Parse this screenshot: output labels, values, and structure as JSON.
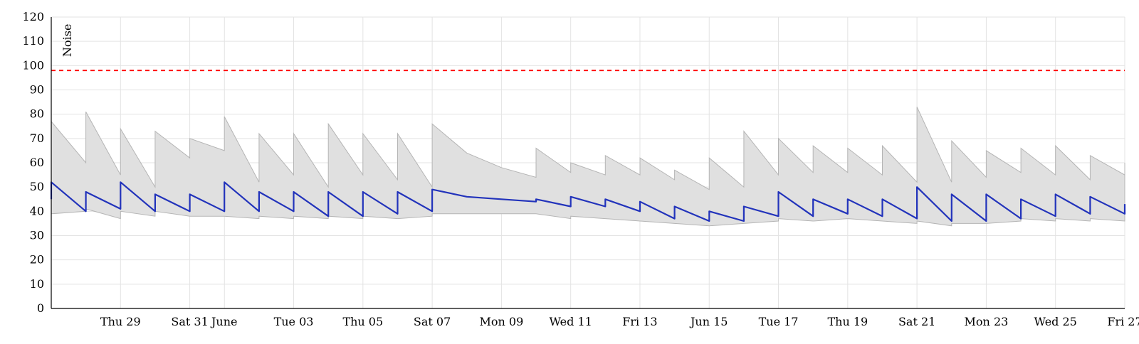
{
  "chart_data": {
    "type": "line",
    "title": "",
    "xlabel": "",
    "ylabel": "Noise",
    "ylim": [
      0,
      120
    ],
    "y_ticks": [
      0,
      10,
      20,
      30,
      40,
      50,
      60,
      70,
      80,
      90,
      100,
      110,
      120
    ],
    "x_ticks": [
      {
        "label": "Thu 29",
        "x": "05-29"
      },
      {
        "label": "Sat 31",
        "x": "05-31"
      },
      {
        "label": "June",
        "x": "06-01"
      },
      {
        "label": "Tue 03",
        "x": "06-03"
      },
      {
        "label": "Thu 05",
        "x": "06-05"
      },
      {
        "label": "Sat 07",
        "x": "06-07"
      },
      {
        "label": "Mon 09",
        "x": "06-09"
      },
      {
        "label": "Wed 11",
        "x": "06-11"
      },
      {
        "label": "Fri 13",
        "x": "06-13"
      },
      {
        "label": "Jun 15",
        "x": "06-15"
      },
      {
        "label": "Tue 17",
        "x": "06-17"
      },
      {
        "label": "Thu 19",
        "x": "06-19"
      },
      {
        "label": "Sat 21",
        "x": "06-21"
      },
      {
        "label": "Mon 23",
        "x": "06-23"
      },
      {
        "label": "Wed 25",
        "x": "06-25"
      },
      {
        "label": "Fri 27",
        "x": "06-27"
      }
    ],
    "x_range": [
      "05-27",
      "06-27"
    ],
    "grid": true,
    "threshold": {
      "value": 98,
      "color": "#ff0000",
      "style": "dashed"
    },
    "colors": {
      "series": "#2233bb",
      "band_fill": "#e0e0e0",
      "band_stroke": "#b5b5b5",
      "grid": "#e3e3e3"
    },
    "series": [
      {
        "kind": "band",
        "x": [
          "05-27",
          "05-27",
          "05-28",
          "05-28",
          "05-29",
          "05-29",
          "05-30",
          "05-30",
          "05-31",
          "05-31",
          "06-01",
          "06-01",
          "06-02",
          "06-02",
          "06-03",
          "06-03",
          "06-04",
          "06-04",
          "06-05",
          "06-05",
          "06-06",
          "06-06",
          "06-07",
          "06-07",
          "06-08",
          "06-09",
          "06-10",
          "06-10",
          "06-11",
          "06-11",
          "06-12",
          "06-12",
          "06-13",
          "06-13",
          "06-14",
          "06-14",
          "06-15",
          "06-15",
          "06-16",
          "06-16",
          "06-17",
          "06-17",
          "06-18",
          "06-18",
          "06-19",
          "06-19",
          "06-20",
          "06-20",
          "06-21",
          "06-21",
          "06-22",
          "06-22",
          "06-23",
          "06-23",
          "06-24",
          "06-24",
          "06-25",
          "06-25",
          "06-26",
          "06-26",
          "06-27",
          "06-27"
        ],
        "upper": [
          67,
          77,
          60,
          81,
          55,
          74,
          50,
          73,
          62,
          70,
          65,
          79,
          52,
          72,
          55,
          72,
          50,
          76,
          55,
          72,
          53,
          72,
          50,
          76,
          64,
          58,
          54,
          66,
          56,
          60,
          55,
          63,
          55,
          62,
          53,
          57,
          49,
          62,
          50,
          73,
          55,
          70,
          56,
          67,
          56,
          66,
          55,
          67,
          52,
          83,
          52,
          69,
          54,
          65,
          56,
          66,
          55,
          67,
          53,
          63,
          55,
          60
        ],
        "lower": [
          41,
          39,
          40,
          41,
          37,
          40,
          38,
          40,
          38,
          38,
          38,
          38,
          37,
          38,
          37,
          38,
          37,
          38,
          37,
          38,
          37,
          37,
          38,
          39,
          39,
          39,
          39,
          39,
          37,
          38,
          37,
          37,
          36,
          36,
          35,
          35,
          34,
          34,
          35,
          35,
          36,
          37,
          36,
          36,
          37,
          37,
          36,
          36,
          35,
          36,
          34,
          35,
          35,
          35,
          36,
          37,
          36,
          37,
          36,
          37,
          36,
          36
        ]
      },
      {
        "kind": "line",
        "x": [
          "05-27",
          "05-27",
          "05-28",
          "05-28",
          "05-29",
          "05-29",
          "05-30",
          "05-30",
          "05-31",
          "05-31",
          "06-01",
          "06-01",
          "06-02",
          "06-02",
          "06-03",
          "06-03",
          "06-04",
          "06-04",
          "06-05",
          "06-05",
          "06-06",
          "06-06",
          "06-07",
          "06-07",
          "06-08",
          "06-09",
          "06-10",
          "06-10",
          "06-11",
          "06-11",
          "06-12",
          "06-12",
          "06-13",
          "06-13",
          "06-14",
          "06-14",
          "06-15",
          "06-15",
          "06-16",
          "06-16",
          "06-17",
          "06-17",
          "06-18",
          "06-18",
          "06-19",
          "06-19",
          "06-20",
          "06-20",
          "06-21",
          "06-21",
          "06-22",
          "06-22",
          "06-23",
          "06-23",
          "06-24",
          "06-24",
          "06-25",
          "06-25",
          "06-26",
          "06-26",
          "06-27",
          "06-27"
        ],
        "values": [
          45,
          52,
          40,
          48,
          41,
          52,
          40,
          47,
          40,
          47,
          40,
          52,
          40,
          48,
          40,
          48,
          38,
          48,
          38,
          48,
          39,
          48,
          40,
          49,
          46,
          45,
          44,
          45,
          42,
          46,
          42,
          45,
          40,
          44,
          37,
          42,
          36,
          40,
          36,
          42,
          38,
          48,
          38,
          45,
          39,
          45,
          38,
          45,
          37,
          50,
          36,
          47,
          36,
          47,
          37,
          45,
          38,
          47,
          39,
          46,
          39,
          43
        ]
      }
    ]
  }
}
